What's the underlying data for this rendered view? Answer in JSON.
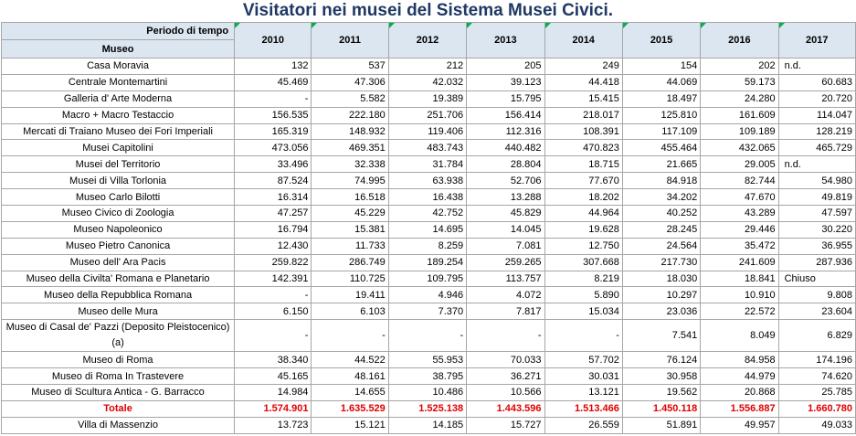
{
  "title": "Visitatori nei musei del Sistema Musei Civici.",
  "header": {
    "period_label": "Periodo di tempo",
    "museum_label": "Museo",
    "years": [
      "2010",
      "2011",
      "2012",
      "2013",
      "2014",
      "2015",
      "2016",
      "2017"
    ]
  },
  "rows": [
    {
      "name": "Casa Moravia",
      "values": [
        "132",
        "537",
        "212",
        "205",
        "249",
        "154",
        "202",
        "n.d."
      ]
    },
    {
      "name": "Centrale Montemartini",
      "values": [
        "45.469",
        "47.306",
        "42.032",
        "39.123",
        "44.418",
        "44.069",
        "59.173",
        "60.683"
      ]
    },
    {
      "name": "Galleria d' Arte Moderna",
      "values": [
        "-",
        "5.582",
        "19.389",
        "15.795",
        "15.415",
        "18.497",
        "24.280",
        "20.720"
      ]
    },
    {
      "name": "Macro + Macro Testaccio",
      "values": [
        "156.535",
        "222.180",
        "251.706",
        "156.414",
        "218.017",
        "125.810",
        "161.609",
        "114.047"
      ]
    },
    {
      "name": "Mercati di Traiano Museo dei Fori Imperiali",
      "values": [
        "165.319",
        "148.932",
        "119.406",
        "112.316",
        "108.391",
        "117.109",
        "109.189",
        "128.219"
      ]
    },
    {
      "name": "Musei Capitolini",
      "values": [
        "473.056",
        "469.351",
        "483.743",
        "440.482",
        "470.823",
        "455.464",
        "432.065",
        "465.729"
      ]
    },
    {
      "name": "Musei del Territorio",
      "values": [
        "33.496",
        "32.338",
        "31.784",
        "28.804",
        "18.715",
        "21.665",
        "29.005",
        "n.d."
      ]
    },
    {
      "name": "Musei di Villa Torlonia",
      "values": [
        "87.524",
        "74.995",
        "63.938",
        "52.706",
        "77.670",
        "84.918",
        "82.744",
        "54.980"
      ]
    },
    {
      "name": "Museo Carlo Bilotti",
      "values": [
        "16.314",
        "16.518",
        "16.438",
        "13.288",
        "18.202",
        "34.202",
        "47.670",
        "49.819"
      ]
    },
    {
      "name": "Museo Civico di Zoologia",
      "values": [
        "47.257",
        "45.229",
        "42.752",
        "45.829",
        "44.964",
        "40.252",
        "43.289",
        "47.597"
      ]
    },
    {
      "name": "Museo Napoleonico",
      "values": [
        "16.794",
        "15.381",
        "14.695",
        "14.045",
        "19.628",
        "28.245",
        "29.446",
        "30.220"
      ]
    },
    {
      "name": "Museo Pietro Canonica",
      "values": [
        "12.430",
        "11.733",
        "8.259",
        "7.081",
        "12.750",
        "24.564",
        "35.472",
        "36.955"
      ]
    },
    {
      "name": "Museo dell' Ara Pacis",
      "values": [
        "259.822",
        "286.749",
        "189.254",
        "259.265",
        "307.668",
        "217.730",
        "241.609",
        "287.936"
      ]
    },
    {
      "name": "Museo della Civilta' Romana e Planetario",
      "values": [
        "142.391",
        "110.725",
        "109.795",
        "113.757",
        "8.219",
        "18.030",
        "18.841",
        "Chiuso"
      ]
    },
    {
      "name": "Museo della Repubblica Romana",
      "values": [
        "-",
        "19.411",
        "4.946",
        "4.072",
        "5.890",
        "10.297",
        "10.910",
        "9.808"
      ]
    },
    {
      "name": "Museo delle Mura",
      "values": [
        "6.150",
        "6.103",
        "7.370",
        "7.817",
        "15.034",
        "23.036",
        "22.572",
        "23.604"
      ]
    },
    {
      "name": "Museo di Casal de' Pazzi (Deposito Pleistocenico) (a)",
      "values": [
        "-",
        "-",
        "-",
        "-",
        "-",
        "7.541",
        "8.049",
        "6.829"
      ]
    },
    {
      "name": "Museo di Roma",
      "values": [
        "38.340",
        "44.522",
        "55.953",
        "70.033",
        "57.702",
        "76.124",
        "84.958",
        "174.196"
      ]
    },
    {
      "name": "Museo di Roma In Trastevere",
      "values": [
        "45.165",
        "48.161",
        "38.795",
        "36.271",
        "30.031",
        "30.958",
        "44.979",
        "74.620"
      ]
    },
    {
      "name": "Museo di Scultura Antica - G. Barracco",
      "values": [
        "14.984",
        "14.655",
        "10.486",
        "10.566",
        "13.121",
        "19.562",
        "20.868",
        "25.785"
      ]
    }
  ],
  "total": {
    "name": "Totale",
    "values": [
      "1.574.901",
      "1.635.529",
      "1.525.138",
      "1.443.596",
      "1.513.466",
      "1.450.118",
      "1.556.887",
      "1.660.780"
    ]
  },
  "after_total": [
    {
      "name": "Villa di Massenzio",
      "values": [
        "13.723",
        "15.121",
        "14.185",
        "15.727",
        "26.559",
        "51.891",
        "49.957",
        "49.033"
      ]
    }
  ]
}
